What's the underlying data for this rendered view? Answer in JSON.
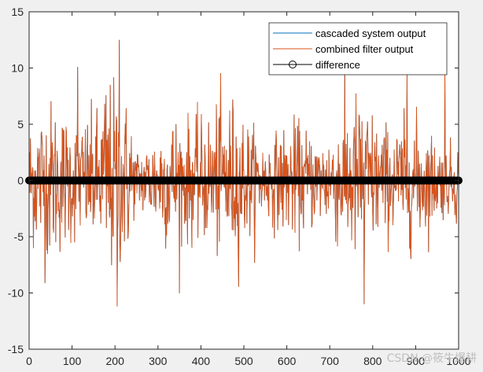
{
  "chart_data": {
    "type": "line",
    "title": "",
    "xlabel": "",
    "ylabel": "",
    "xlim": [
      0,
      1000
    ],
    "ylim": [
      -15,
      15
    ],
    "xticks": [
      0,
      100,
      200,
      300,
      400,
      500,
      600,
      700,
      800,
      900,
      1000
    ],
    "yticks": [
      -15,
      -10,
      -5,
      0,
      5,
      10,
      15
    ],
    "grid": false,
    "legend_position": "top-right",
    "n_points": 1001,
    "signal_note": "random noise, peaks ~12.5 near n=210, ~-11 near n=205 and n=780",
    "series": [
      {
        "name": "cascaded system output",
        "color": "#0072bd",
        "style": "line"
      },
      {
        "name": "combined filter output",
        "color": "#d95319",
        "style": "line"
      },
      {
        "name": "difference",
        "color": "#000000",
        "style": "line-circle-markers",
        "value": 0
      }
    ],
    "notable_points": [
      {
        "x": 113,
        "y": 10.1
      },
      {
        "x": 205,
        "y": -11.2
      },
      {
        "x": 210,
        "y": 12.5
      },
      {
        "x": 780,
        "y": -11.0
      },
      {
        "x": 880,
        "y": 10.0
      },
      {
        "x": 968,
        "y": 10.0
      }
    ]
  },
  "watermark": {
    "text": "CSDN @筱牛爆耕"
  },
  "colors": {
    "figure_bg": "#f0f0f0",
    "axes_bg": "#ffffff",
    "axis": "#262626"
  }
}
